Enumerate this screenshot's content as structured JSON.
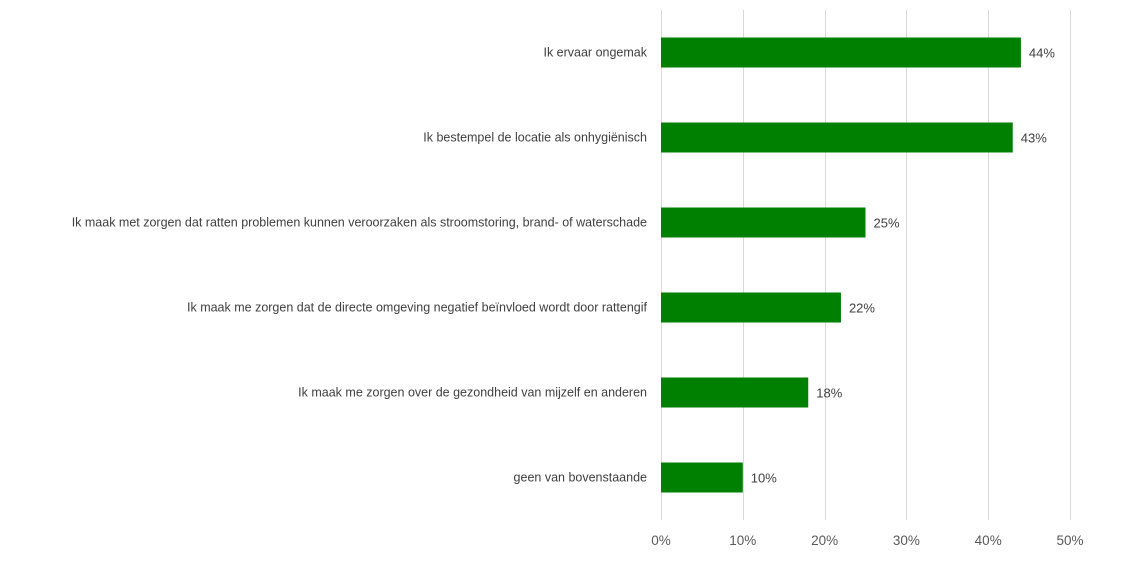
{
  "chart_data": {
    "type": "bar",
    "orientation": "horizontal",
    "categories": [
      "Ik ervaar ongemak",
      "Ik bestempel de locatie als onhygiënisch",
      "Ik maak met zorgen dat ratten problemen kunnen veroorzaken als stroomstoring, brand- of waterschade",
      "Ik maak me zorgen dat de directe omgeving negatief beïnvloed wordt door rattengif",
      "Ik maak me zorgen over de gezondheid van mijzelf en anderen",
      "geen van bovenstaande"
    ],
    "values": [
      44,
      43,
      25,
      22,
      18,
      10
    ],
    "value_labels": [
      "44%",
      "43%",
      "25%",
      "22%",
      "18%",
      "10%"
    ],
    "x_ticks": [
      0,
      10,
      20,
      30,
      40,
      50
    ],
    "x_tick_labels": [
      "0%",
      "10%",
      "20%",
      "30%",
      "40%",
      "50%"
    ],
    "xlim": [
      0,
      50
    ],
    "title": "",
    "xlabel": "",
    "ylabel": "",
    "grid": "vertical",
    "legend": "none",
    "bar_color": "#008000"
  }
}
